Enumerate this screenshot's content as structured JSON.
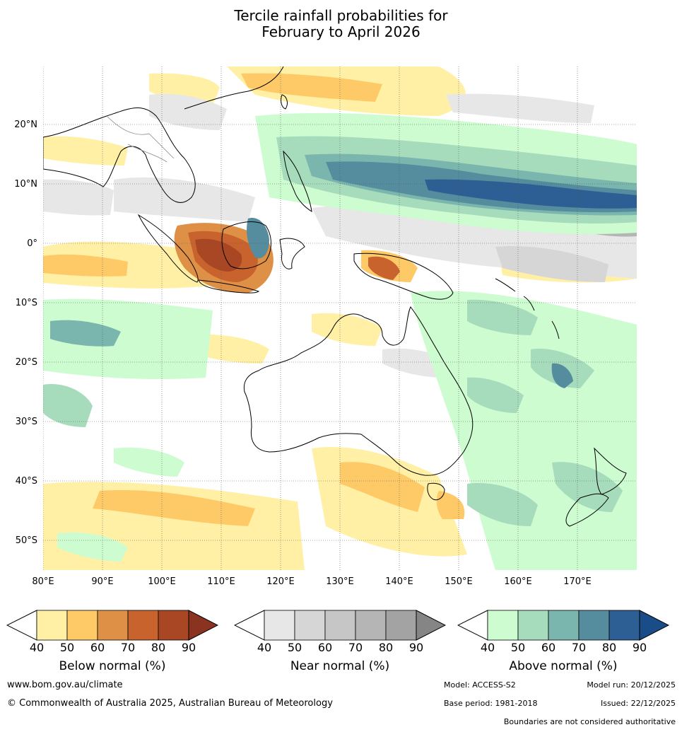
{
  "title": {
    "line1": "Tercile rainfall probabilities for",
    "line2": "February to April 2026"
  },
  "lat_labels": [
    "20°N",
    "10°N",
    "0°",
    "10°S",
    "20°S",
    "30°S",
    "40°S",
    "50°S"
  ],
  "lon_labels": [
    "80°E",
    "90°E",
    "100°E",
    "110°E",
    "120°E",
    "130°E",
    "140°E",
    "150°E",
    "160°E",
    "170°E"
  ],
  "colorbars": [
    {
      "name": "below",
      "title": "Below normal (%)",
      "ticks": [
        "40",
        "50",
        "60",
        "70",
        "80",
        "90"
      ],
      "colors": [
        "#fff0a6",
        "#fdca67",
        "#de9146",
        "#c8632e",
        "#a94724",
        "#8a3320"
      ]
    },
    {
      "name": "near",
      "title": "Near normal (%)",
      "ticks": [
        "40",
        "50",
        "60",
        "70",
        "80",
        "90"
      ],
      "colors": [
        "#e7e7e7",
        "#d6d6d6",
        "#c6c6c6",
        "#b5b5b5",
        "#a3a3a3",
        "#858585"
      ]
    },
    {
      "name": "above",
      "title": "Above normal (%)",
      "ticks": [
        "40",
        "50",
        "60",
        "70",
        "80",
        "90"
      ],
      "colors": [
        "#ccfccf",
        "#a6dbbb",
        "#7ab6ad",
        "#558d9f",
        "#2e5f94",
        "#1a4c88"
      ]
    }
  ],
  "footer": {
    "website": "www.bom.gov.au/climate",
    "copyright": "© Commonwealth of Australia 2025, Australian Bureau of Meteorology",
    "model": "Model: ACCESS-S2",
    "model_run": "Model run: 20/12/2025",
    "base_period": "Base period: 1981-2018",
    "issued": "Issued: 22/12/2025",
    "disclaimer": "Boundaries are not considered authoritative"
  }
}
